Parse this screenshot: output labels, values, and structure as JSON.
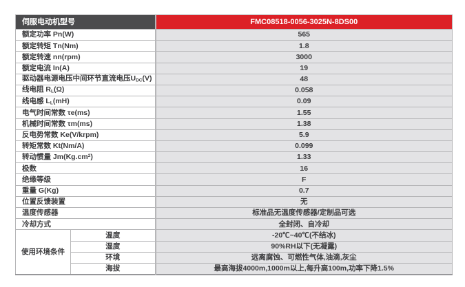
{
  "colors": {
    "header_bg": "#4b4b4d",
    "model_bg": "#dc2127",
    "value_bg": "#e3e3e5",
    "border": "#b6b6b8",
    "label_text": "#3b3b3d",
    "header_text": "#ffffff"
  },
  "table": {
    "header": {
      "label": "伺服电动机型号",
      "model": "FMC08518-0056-3025N-8DS00"
    },
    "rows": [
      {
        "label": "额定功率 Pn(W)",
        "value": "565"
      },
      {
        "label": "额定转矩 Tn(Nm)",
        "value": "1.8"
      },
      {
        "label": "额定转速 nn(rpm)",
        "value": "3000"
      },
      {
        "label": "额定电流 In(A)",
        "value": "19"
      },
      {
        "label": "驱动器电源电压中间环节直流电压U_{DC}(V)",
        "value": "48"
      },
      {
        "label": "线电阻 R_{L}(Ω)",
        "value": "0.058"
      },
      {
        "label": "线电感 L_{L}(mH)",
        "value": "0.09"
      },
      {
        "label": "电气时间常数 τe(ms)",
        "value": "1.55"
      },
      {
        "label": "机械时间常数 τm(ms)",
        "value": "1.38"
      },
      {
        "label": "反电势常数 Ke(V/krpm)",
        "value": "5.9"
      },
      {
        "label": "转矩常数 Kt(Nm/A)",
        "value": "0.099"
      },
      {
        "label": "转动惯量 Jm(Kg.cm^{2})",
        "value": "1.33"
      },
      {
        "label": "极数",
        "value": "16"
      },
      {
        "label": "绝缘等级",
        "value": "F"
      },
      {
        "label": "重量 G(Kg)",
        "value": "0.7"
      },
      {
        "label": "位置反馈装置",
        "value": "无"
      },
      {
        "label": "温度传感器",
        "value": "标准品无温度传感器/定制品可选"
      },
      {
        "label": "冷却方式",
        "value": "全封闭、自冷却"
      }
    ],
    "environment": {
      "group_label": "使用环境条件",
      "rows": [
        {
          "label": "温度",
          "value": "-20℃~40℃(不结冰)"
        },
        {
          "label": "湿度",
          "value": "90%RH以下(无凝露)"
        },
        {
          "label": "环境",
          "value": "远离腐蚀、可燃性气体,油滴,灰尘"
        },
        {
          "label": "海拔",
          "value": "最高海拔4000m,1000m以上,每升高100m,功率下降1.5%"
        }
      ]
    }
  }
}
